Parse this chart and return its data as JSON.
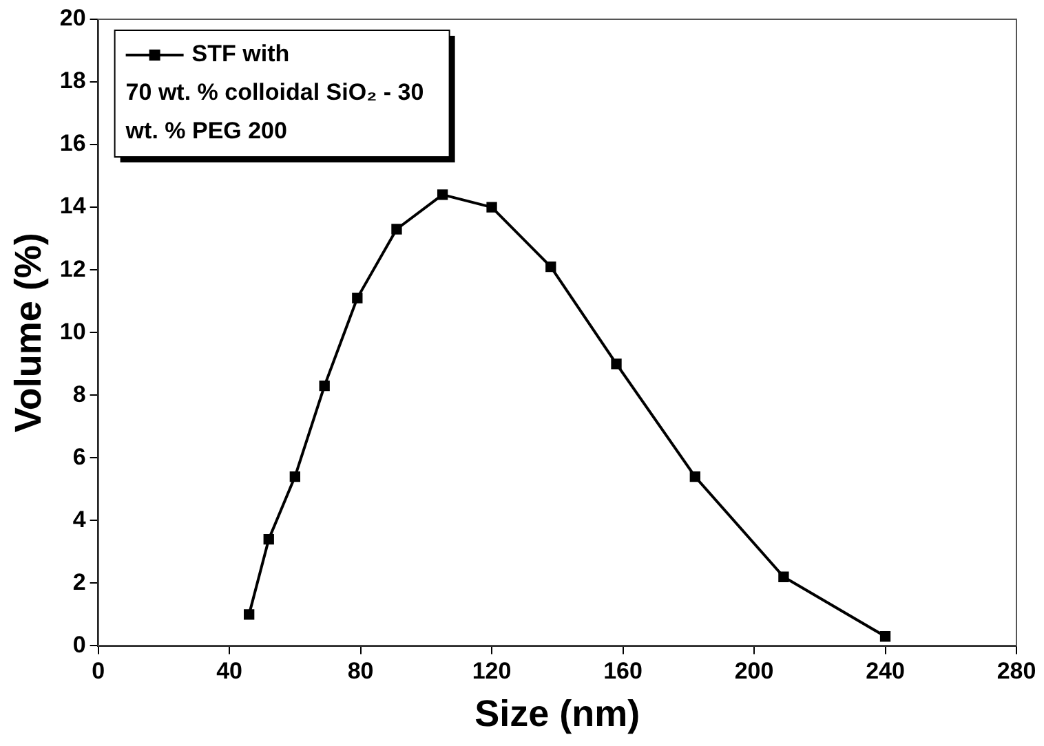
{
  "chart_data": {
    "type": "line",
    "xlabel": "Size (nm)",
    "ylabel": "Volume (%)",
    "x": [
      46,
      52,
      60,
      69,
      79,
      91,
      105,
      120,
      138,
      158,
      182,
      209,
      240
    ],
    "series": [
      {
        "name": "STF with 70 wt. % colloidal SiO₂ - 30 wt. % PEG 200",
        "color": "#000000",
        "values": [
          1.0,
          3.4,
          5.4,
          8.3,
          11.1,
          13.3,
          14.4,
          14.0,
          12.1,
          9.0,
          5.4,
          2.2,
          0.3
        ]
      }
    ],
    "xlim": [
      0,
      280
    ],
    "xticks": [
      0,
      40,
      80,
      120,
      160,
      200,
      240,
      280
    ],
    "ylim": [
      0,
      20
    ],
    "yticks": [
      0,
      2,
      4,
      6,
      8,
      10,
      12,
      14,
      16,
      18,
      20
    ],
    "grid": false,
    "legend": "top left",
    "marker": "square",
    "line_style": "solid"
  }
}
